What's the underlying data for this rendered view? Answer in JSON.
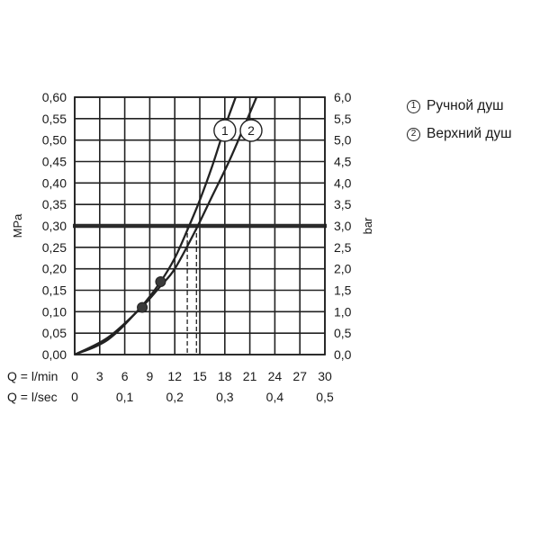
{
  "chart_data": {
    "type": "line",
    "x_axis": {
      "label": "Q = l/min",
      "range": [
        0,
        30
      ],
      "ticks": [
        "0",
        "3",
        "6",
        "9",
        "12",
        "15",
        "18",
        "21",
        "24",
        "27",
        "30"
      ]
    },
    "x_axis_secondary": {
      "label": "Q = l/sec",
      "range": [
        0,
        0.5
      ],
      "ticks": [
        "0",
        "0,1",
        "0,2",
        "0,3",
        "0,4",
        "0,5"
      ]
    },
    "y_axis_left": {
      "label": "MPa",
      "range": [
        0,
        0.6
      ],
      "ticks": [
        "0,00",
        "0,05",
        "0,10",
        "0,15",
        "0,20",
        "0,25",
        "0,30",
        "0,35",
        "0,40",
        "0,45",
        "0,50",
        "0,55",
        "0,60"
      ]
    },
    "y_axis_right": {
      "label": "bar",
      "range": [
        0,
        6
      ],
      "ticks": [
        "0,0",
        "0,5",
        "1,0",
        "1,5",
        "2,0",
        "2,5",
        "3,0",
        "3,5",
        "4,0",
        "4,5",
        "5,0",
        "5,5",
        "6,0"
      ]
    },
    "grid": true,
    "reference_line": {
      "y": 0.3
    },
    "series": [
      {
        "name": "Ручной душ",
        "marker": "1",
        "x": [
          0,
          4,
          8,
          10.3,
          12,
          13.5,
          15,
          16.5,
          18,
          19.3
        ],
        "y": [
          0,
          0.035,
          0.112,
          0.17,
          0.225,
          0.29,
          0.36,
          0.44,
          0.53,
          0.6
        ],
        "operating_point": {
          "x": 10.3,
          "y": 0.17
        }
      },
      {
        "name": "Верхний душ",
        "marker": "2",
        "x": [
          0,
          4,
          8,
          10.3,
          12,
          14.5,
          16.5,
          18.5,
          20.5,
          21.8
        ],
        "y": [
          0,
          0.04,
          0.11,
          0.16,
          0.2,
          0.29,
          0.37,
          0.45,
          0.54,
          0.6
        ],
        "operating_point": {
          "x": 8.1,
          "y": 0.11
        }
      }
    ],
    "flow_at_reference": [
      13.5,
      14.6
    ]
  },
  "legend": {
    "items": [
      {
        "marker": "①",
        "label": "Ручной душ"
      },
      {
        "marker": "②",
        "label": "Верхний душ"
      }
    ]
  }
}
